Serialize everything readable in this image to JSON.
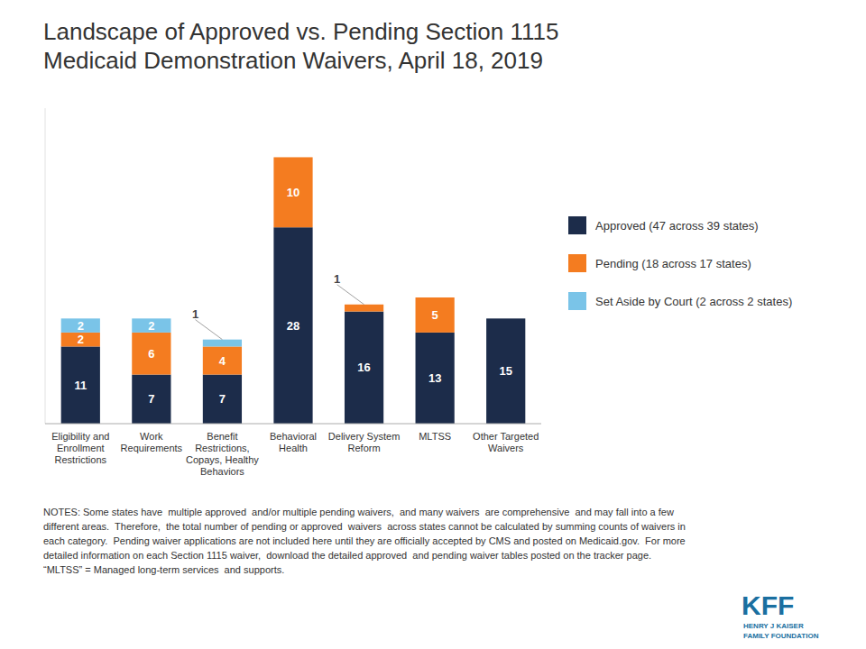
{
  "chart_data": {
    "type": "bar",
    "stacked": true,
    "title": "Landscape of Approved vs. Pending Section 1115\nMedicaid Demonstration Waivers, April 18, 2019",
    "categories": [
      "Eligibility and\nEnrollment\nRestrictions",
      "Work\nRequirements",
      "Benefit\nRestrictions,\nCopays, Healthy\nBehaviors",
      "Behavioral\nHealth",
      "Delivery System\nReform",
      "MLTSS",
      "Other Targeted\nWaivers"
    ],
    "series": [
      {
        "name": "Approved (47 across 39 states)",
        "color": "#1c2c4a",
        "values": [
          11,
          7,
          7,
          28,
          16,
          13,
          15
        ]
      },
      {
        "name": "Pending (18 across 17 states)",
        "color": "#f47c20",
        "values": [
          2,
          6,
          4,
          10,
          1,
          5,
          0
        ]
      },
      {
        "name": "Set Aside by Court (2 across 2 states)",
        "color": "#7ac4e8",
        "values": [
          2,
          2,
          1,
          0,
          0,
          0,
          0
        ]
      }
    ],
    "ylim": [
      0,
      45
    ],
    "yticks": [],
    "tick_labels": "x",
    "data_labels": true,
    "grid": false,
    "legend": "right",
    "annotations": [
      "NOTES: Some states have  multiple approved  and/or multiple pending waivers,  and many waivers  are comprehensive  and may fall into a few\ndifferent areas.  Therefore,  the total number of pending or approved  waivers  across states cannot be calculated by summing counts of waivers in\neach category.  Pending waiver applications are not included here until they are officially accepted by CMS and posted on Medicaid.gov.  For more\ndetailed information on each Section 1115 waiver,  download the detailed approved  and pending waiver tables posted on the tracker page.\n“MLTSS” = Managed long-term services  and supports.",
      "KFF",
      "HENRY J KAISER",
      "FAMILY FOUNDATION"
    ]
  }
}
